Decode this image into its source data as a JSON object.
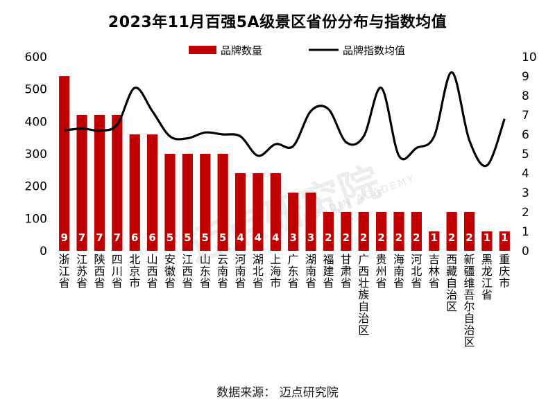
{
  "chart_data": {
    "type": "bar",
    "title": "2023年11月百强5A级景区省份分布与指数均值",
    "source": "数据来源：  迈点研究院",
    "watermark": "迈点研究院",
    "watermark_sub": "MEADIN ACADEMY",
    "categories": [
      "浙江省",
      "江苏省",
      "陕西省",
      "四川省",
      "北京市",
      "山西省",
      "安徽省",
      "江西省",
      "山东省",
      "云南省",
      "河南省",
      "湖北省",
      "上海市",
      "广东省",
      "湖南省",
      "福建省",
      "甘肃省",
      "广西壮族自治区",
      "贵州省",
      "海南省",
      "河北省",
      "吉林省",
      "西藏自治区",
      "新疆维吾尔自治区",
      "黑龙江省",
      "重庆市"
    ],
    "series": [
      {
        "name": "品牌数量",
        "type": "bar",
        "axis": "left",
        "color": "#c00000",
        "values": [
          9,
          7,
          7,
          7,
          6,
          6,
          5,
          5,
          5,
          5,
          4,
          4,
          4,
          3,
          3,
          2,
          2,
          2,
          2,
          2,
          2,
          1,
          2,
          2,
          1,
          1
        ]
      },
      {
        "name": "品牌指数均值",
        "type": "line",
        "axis": "right",
        "color": "#000000",
        "values": [
          6.2,
          6.3,
          6.2,
          6.5,
          8.4,
          7.2,
          5.9,
          5.8,
          6.1,
          6.0,
          5.9,
          4.9,
          5.5,
          5.4,
          7.2,
          7.3,
          5.6,
          5.9,
          8.4,
          4.9,
          5.3,
          5.9,
          9.2,
          5.7,
          4.4,
          6.8
        ]
      }
    ],
    "left_axis": {
      "ylim": [
        0,
        600
      ],
      "ticks": [
        "0",
        "100",
        "200",
        "300",
        "400",
        "500",
        "600"
      ]
    },
    "right_axis": {
      "ylim": [
        0,
        10
      ],
      "ticks": [
        "0",
        "1",
        "2",
        "3",
        "4",
        "5",
        "6",
        "7",
        "8",
        "9",
        "10"
      ]
    },
    "bar_scale_note": "",
    "grid": false,
    "legend_position": "top"
  }
}
